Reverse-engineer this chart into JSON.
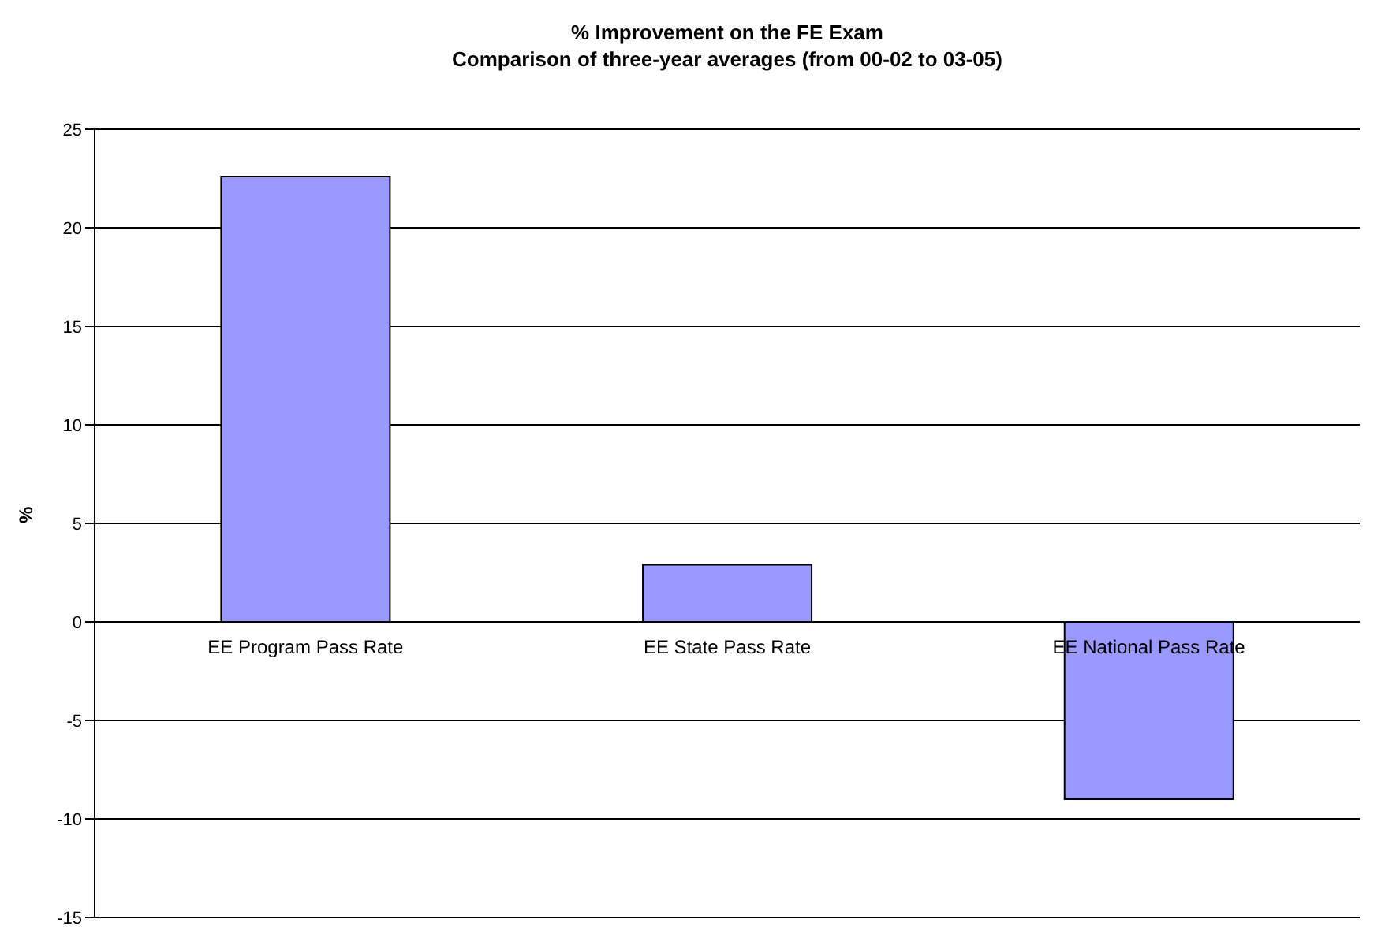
{
  "chart_data": {
    "type": "bar",
    "title": "% Improvement on the FE Exam",
    "subtitle": "Comparison of three-year averages (from 00-02 to 03-05)",
    "ylabel": "%",
    "categories": [
      "EE Program Pass Rate",
      "EE State Pass Rate",
      "EE National Pass Rate"
    ],
    "values": [
      22.6,
      2.9,
      -9.0
    ],
    "color": "#9999ff",
    "ylim": [
      -15,
      25
    ],
    "yticks": [
      -15,
      -10,
      -5,
      0,
      5,
      10,
      15,
      20,
      25
    ],
    "grid": "y"
  }
}
